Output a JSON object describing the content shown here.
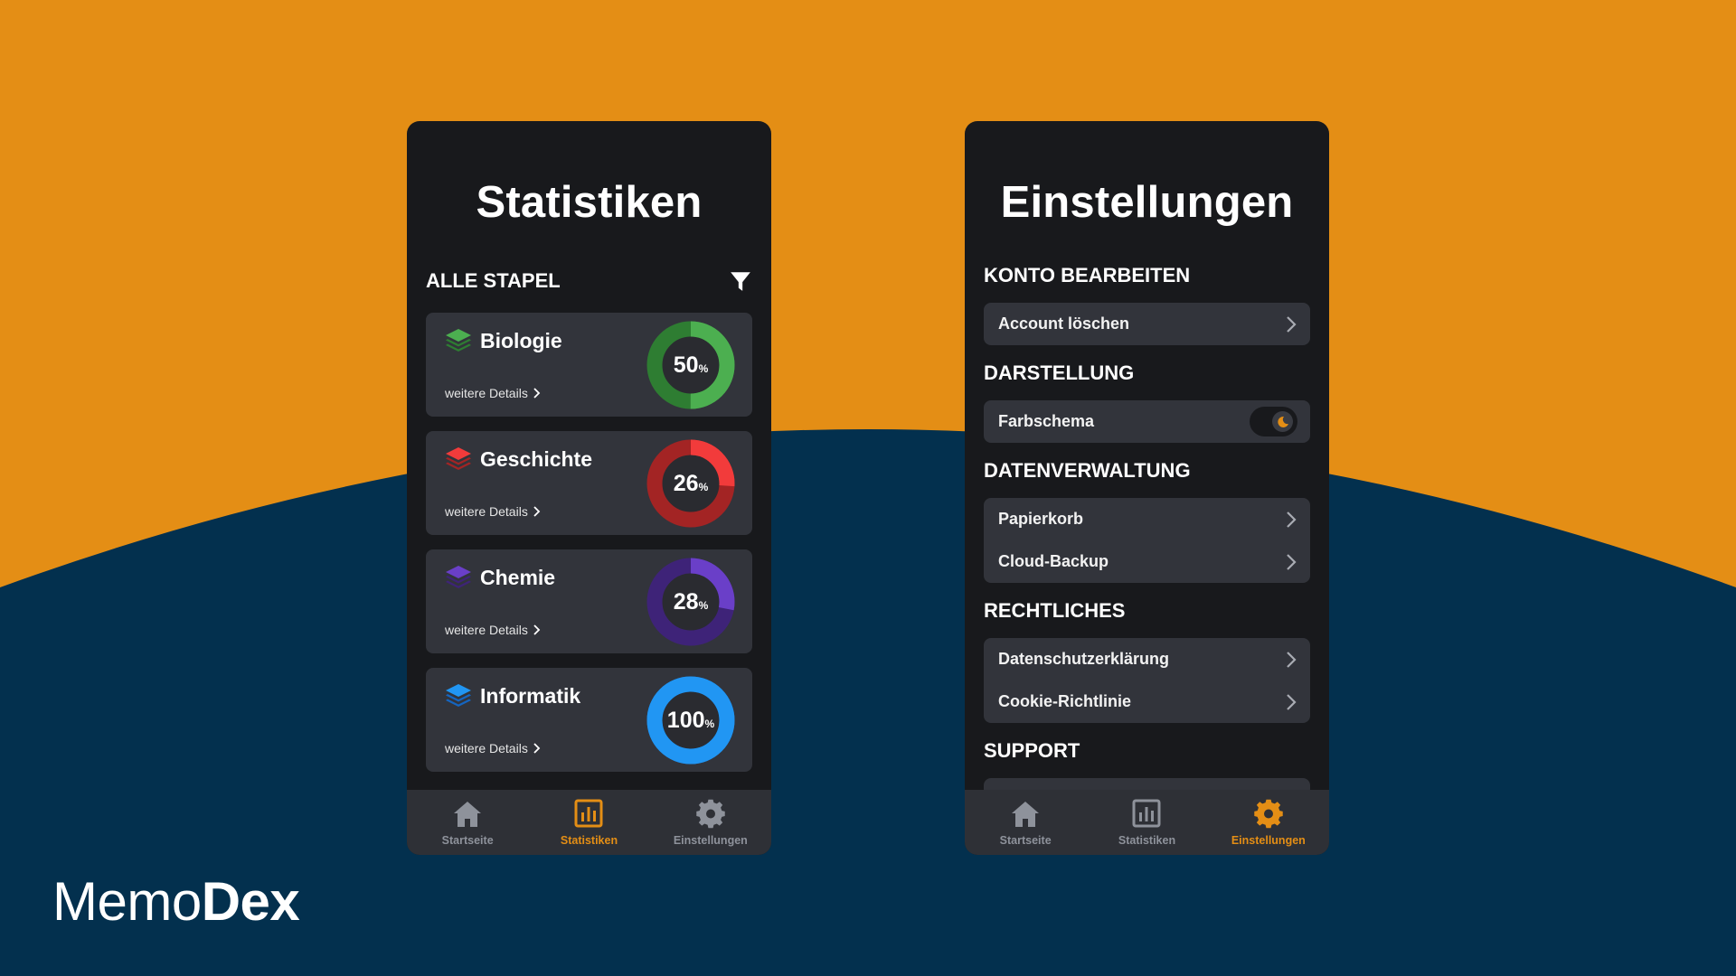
{
  "brand": {
    "part1": "Memo",
    "part2": "Dex"
  },
  "colors": {
    "accent": "#E48E15",
    "navy": "#03304E",
    "panel": "#18191C",
    "card": "#32343B"
  },
  "stats": {
    "title": "Statistiken",
    "section_label": "ALLE STAPEL",
    "filter_icon": "filter-icon",
    "decks": [
      {
        "name": "Biologie",
        "details": "weitere Details",
        "percent": 50,
        "percent_label": "50",
        "unit": "%",
        "color": "#4CAF50",
        "color_dark": "#2E7D32"
      },
      {
        "name": "Geschichte",
        "details": "weitere Details",
        "percent": 26,
        "percent_label": "26",
        "unit": "%",
        "color": "#F23B3B",
        "color_dark": "#A32424"
      },
      {
        "name": "Chemie",
        "details": "weitere Details",
        "percent": 28,
        "percent_label": "28",
        "unit": "%",
        "color": "#6A3FC8",
        "color_dark": "#3E2378"
      },
      {
        "name": "Informatik",
        "details": "weitere Details",
        "percent": 100,
        "percent_label": "100",
        "unit": "%",
        "color": "#2196F3",
        "color_dark": "#1565C0"
      }
    ]
  },
  "settings": {
    "title": "Einstellungen",
    "sections": {
      "account": {
        "heading": "KONTO BEARBEITEN",
        "items": [
          "Account löschen"
        ]
      },
      "display": {
        "heading": "DARSTELLUNG",
        "items": [
          "Farbschema"
        ]
      },
      "data": {
        "heading": "DATENVERWALTUNG",
        "items": [
          "Papierkorb",
          "Cloud-Backup"
        ]
      },
      "legal": {
        "heading": "RECHTLICHES",
        "items": [
          "Datenschutzerklärung",
          "Cookie-Richtlinie"
        ]
      },
      "support": {
        "heading": "SUPPORT"
      }
    }
  },
  "tabs": [
    {
      "label": "Startseite",
      "icon": "home-icon"
    },
    {
      "label": "Statistiken",
      "icon": "chart-icon"
    },
    {
      "label": "Einstellungen",
      "icon": "gear-icon"
    }
  ]
}
